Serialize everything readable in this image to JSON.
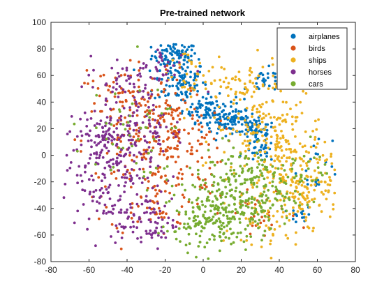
{
  "chart_data": {
    "type": "scatter",
    "title": "Pre-trained network",
    "xlabel": "",
    "ylabel": "",
    "xlim": [
      -80,
      80
    ],
    "ylim": [
      -80,
      100
    ],
    "xticks": [
      -80,
      -60,
      -40,
      -20,
      0,
      20,
      40,
      60,
      80
    ],
    "yticks": [
      -80,
      -60,
      -40,
      -20,
      0,
      20,
      40,
      60,
      80,
      100
    ],
    "xtick_labels": [
      "-80",
      "-60",
      "-40",
      "-20",
      "0",
      "20",
      "40",
      "60",
      "80"
    ],
    "ytick_labels": [
      "-80",
      "-60",
      "-40",
      "-20",
      "0",
      "20",
      "40",
      "60",
      "80",
      "100"
    ],
    "grid": false,
    "legend_position": "top-right",
    "series": [
      {
        "name": "airplanes",
        "color": "#0072BD",
        "clusters": [
          {
            "cx": -15,
            "cy": 75,
            "sx": 6,
            "sy": 5,
            "n": 90
          },
          {
            "cx": -12,
            "cy": 55,
            "sx": 7,
            "sy": 8,
            "n": 90
          },
          {
            "cx": 3,
            "cy": 35,
            "sx": 7,
            "sy": 5,
            "n": 80
          },
          {
            "cx": 15,
            "cy": 25,
            "sx": 8,
            "sy": 4,
            "n": 90
          },
          {
            "cx": 28,
            "cy": 18,
            "sx": 5,
            "sy": 4,
            "n": 45
          },
          {
            "cx": 30,
            "cy": 3,
            "sx": 4,
            "sy": 4,
            "n": 30
          },
          {
            "cx": 33,
            "cy": 55,
            "sx": 5,
            "sy": 5,
            "n": 30
          },
          {
            "cx": 52,
            "cy": -45,
            "sx": 3,
            "sy": 3,
            "n": 15
          },
          {
            "cx": 60,
            "cy": -5,
            "sx": 6,
            "sy": 12,
            "n": 20
          }
        ]
      },
      {
        "name": "birds",
        "color": "#D95319",
        "clusters": [
          {
            "cx": -35,
            "cy": 10,
            "sx": 14,
            "sy": 20,
            "n": 120
          },
          {
            "cx": -18,
            "cy": 30,
            "sx": 10,
            "sy": 20,
            "n": 80
          },
          {
            "cx": -25,
            "cy": -30,
            "sx": 12,
            "sy": 15,
            "n": 70
          },
          {
            "cx": -10,
            "cy": 5,
            "sx": 10,
            "sy": 15,
            "n": 60
          },
          {
            "cx": -45,
            "cy": 50,
            "sx": 8,
            "sy": 10,
            "n": 40
          },
          {
            "cx": 30,
            "cy": -45,
            "sx": 10,
            "sy": 10,
            "n": 30
          }
        ]
      },
      {
        "name": "ships",
        "color": "#EDB120",
        "clusters": [
          {
            "cx": 35,
            "cy": 20,
            "sx": 15,
            "sy": 20,
            "n": 160
          },
          {
            "cx": 45,
            "cy": -10,
            "sx": 12,
            "sy": 15,
            "n": 130
          },
          {
            "cx": 55,
            "cy": -30,
            "sx": 8,
            "sy": 10,
            "n": 80
          },
          {
            "cx": 20,
            "cy": 50,
            "sx": 10,
            "sy": 10,
            "n": 50
          },
          {
            "cx": -5,
            "cy": 60,
            "sx": 10,
            "sy": 12,
            "n": 35
          },
          {
            "cx": 35,
            "cy": -55,
            "sx": 10,
            "sy": 10,
            "n": 40
          }
        ]
      },
      {
        "name": "horses",
        "color": "#7E2F8E",
        "clusters": [
          {
            "cx": -50,
            "cy": -10,
            "sx": 12,
            "sy": 22,
            "n": 190
          },
          {
            "cx": -55,
            "cy": 15,
            "sx": 8,
            "sy": 8,
            "n": 60
          },
          {
            "cx": -30,
            "cy": -50,
            "sx": 8,
            "sy": 12,
            "n": 80
          },
          {
            "cx": -40,
            "cy": 55,
            "sx": 10,
            "sy": 10,
            "n": 50
          },
          {
            "cx": -20,
            "cy": 65,
            "sx": 8,
            "sy": 8,
            "n": 30
          },
          {
            "cx": -30,
            "cy": 20,
            "sx": 10,
            "sy": 15,
            "n": 60
          }
        ]
      },
      {
        "name": "cars",
        "color": "#77AC30",
        "clusters": [
          {
            "cx": 10,
            "cy": -40,
            "sx": 12,
            "sy": 14,
            "n": 220
          },
          {
            "cx": 30,
            "cy": -30,
            "sx": 10,
            "sy": 12,
            "n": 90
          },
          {
            "cx": -5,
            "cy": -55,
            "sx": 8,
            "sy": 10,
            "n": 50
          },
          {
            "cx": 20,
            "cy": -10,
            "sx": 10,
            "sy": 10,
            "n": 50
          },
          {
            "cx": -40,
            "cy": 10,
            "sx": 15,
            "sy": 20,
            "n": 50
          },
          {
            "cx": 50,
            "cy": -10,
            "sx": 10,
            "sy": 10,
            "n": 40
          }
        ]
      }
    ]
  }
}
